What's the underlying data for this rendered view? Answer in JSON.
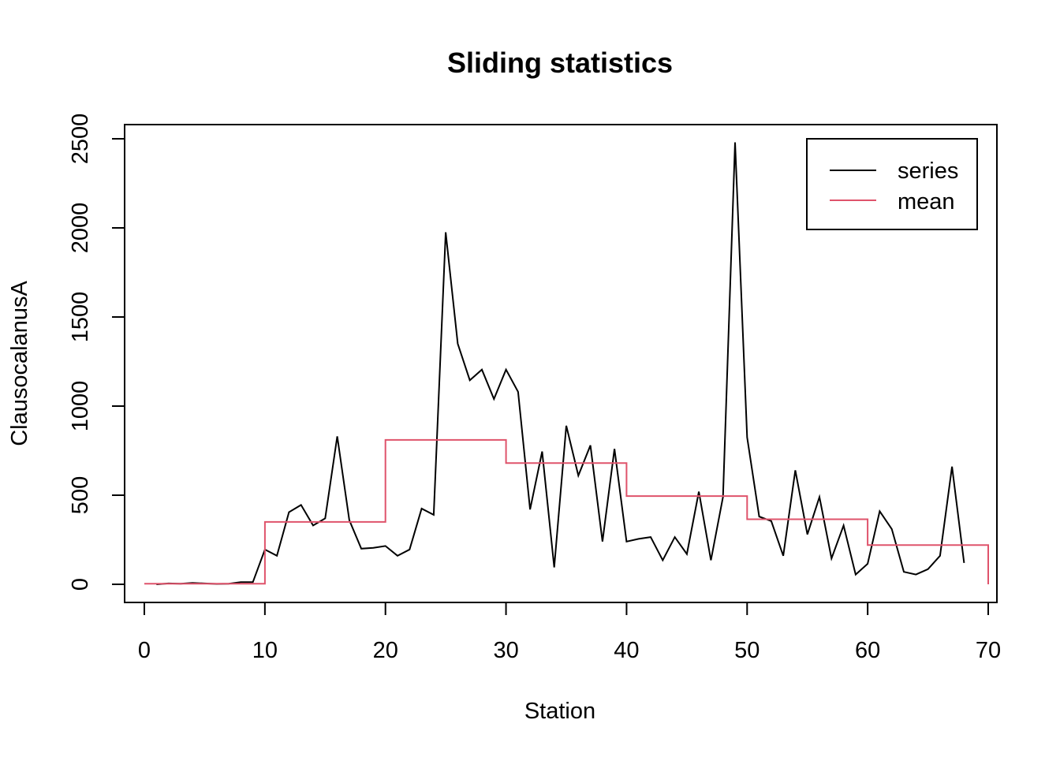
{
  "chart_data": {
    "type": "line",
    "title": "Sliding statistics",
    "xlabel": "Station",
    "ylabel": "ClausocalanusA",
    "xlim": [
      0,
      70
    ],
    "ylim": [
      0,
      2500
    ],
    "x_ticks": [
      0,
      10,
      20,
      30,
      40,
      50,
      60,
      70
    ],
    "y_ticks": [
      0,
      500,
      1000,
      1500,
      2000,
      2500
    ],
    "grid": false,
    "legend": {
      "position": "top-right",
      "entries": [
        "series",
        "mean"
      ]
    },
    "series": [
      {
        "name": "series",
        "color": "#000000",
        "x": [
          1,
          2,
          3,
          4,
          5,
          6,
          7,
          8,
          9,
          10,
          11,
          12,
          13,
          14,
          15,
          16,
          17,
          18,
          19,
          20,
          21,
          22,
          23,
          24,
          25,
          26,
          27,
          28,
          29,
          30,
          31,
          32,
          33,
          34,
          35,
          36,
          37,
          38,
          39,
          40,
          41,
          42,
          43,
          44,
          45,
          46,
          47,
          48,
          49,
          50,
          51,
          52,
          53,
          54,
          55,
          56,
          57,
          58,
          59,
          60,
          61,
          62,
          63,
          64,
          65,
          66,
          67,
          68
        ],
        "y": [
          0,
          5,
          3,
          8,
          5,
          2,
          3,
          12,
          12,
          195,
          160,
          405,
          445,
          330,
          370,
          830,
          360,
          200,
          205,
          215,
          160,
          195,
          425,
          390,
          1975,
          1350,
          1145,
          1205,
          1040,
          1205,
          1080,
          420,
          745,
          95,
          890,
          610,
          780,
          240,
          760,
          240,
          255,
          265,
          135,
          265,
          170,
          520,
          135,
          490,
          2480,
          825,
          380,
          355,
          160,
          640,
          280,
          490,
          145,
          330,
          55,
          115,
          410,
          310,
          70,
          55,
          85,
          160,
          660,
          120
        ]
      },
      {
        "name": "mean",
        "color": "#DF536B",
        "x": [
          0,
          10,
          10,
          20,
          20,
          30,
          30,
          40,
          40,
          50,
          50,
          60,
          60,
          70,
          70
        ],
        "y": [
          3,
          3,
          350,
          350,
          810,
          810,
          680,
          680,
          495,
          495,
          365,
          365,
          220,
          220,
          0
        ]
      }
    ]
  }
}
